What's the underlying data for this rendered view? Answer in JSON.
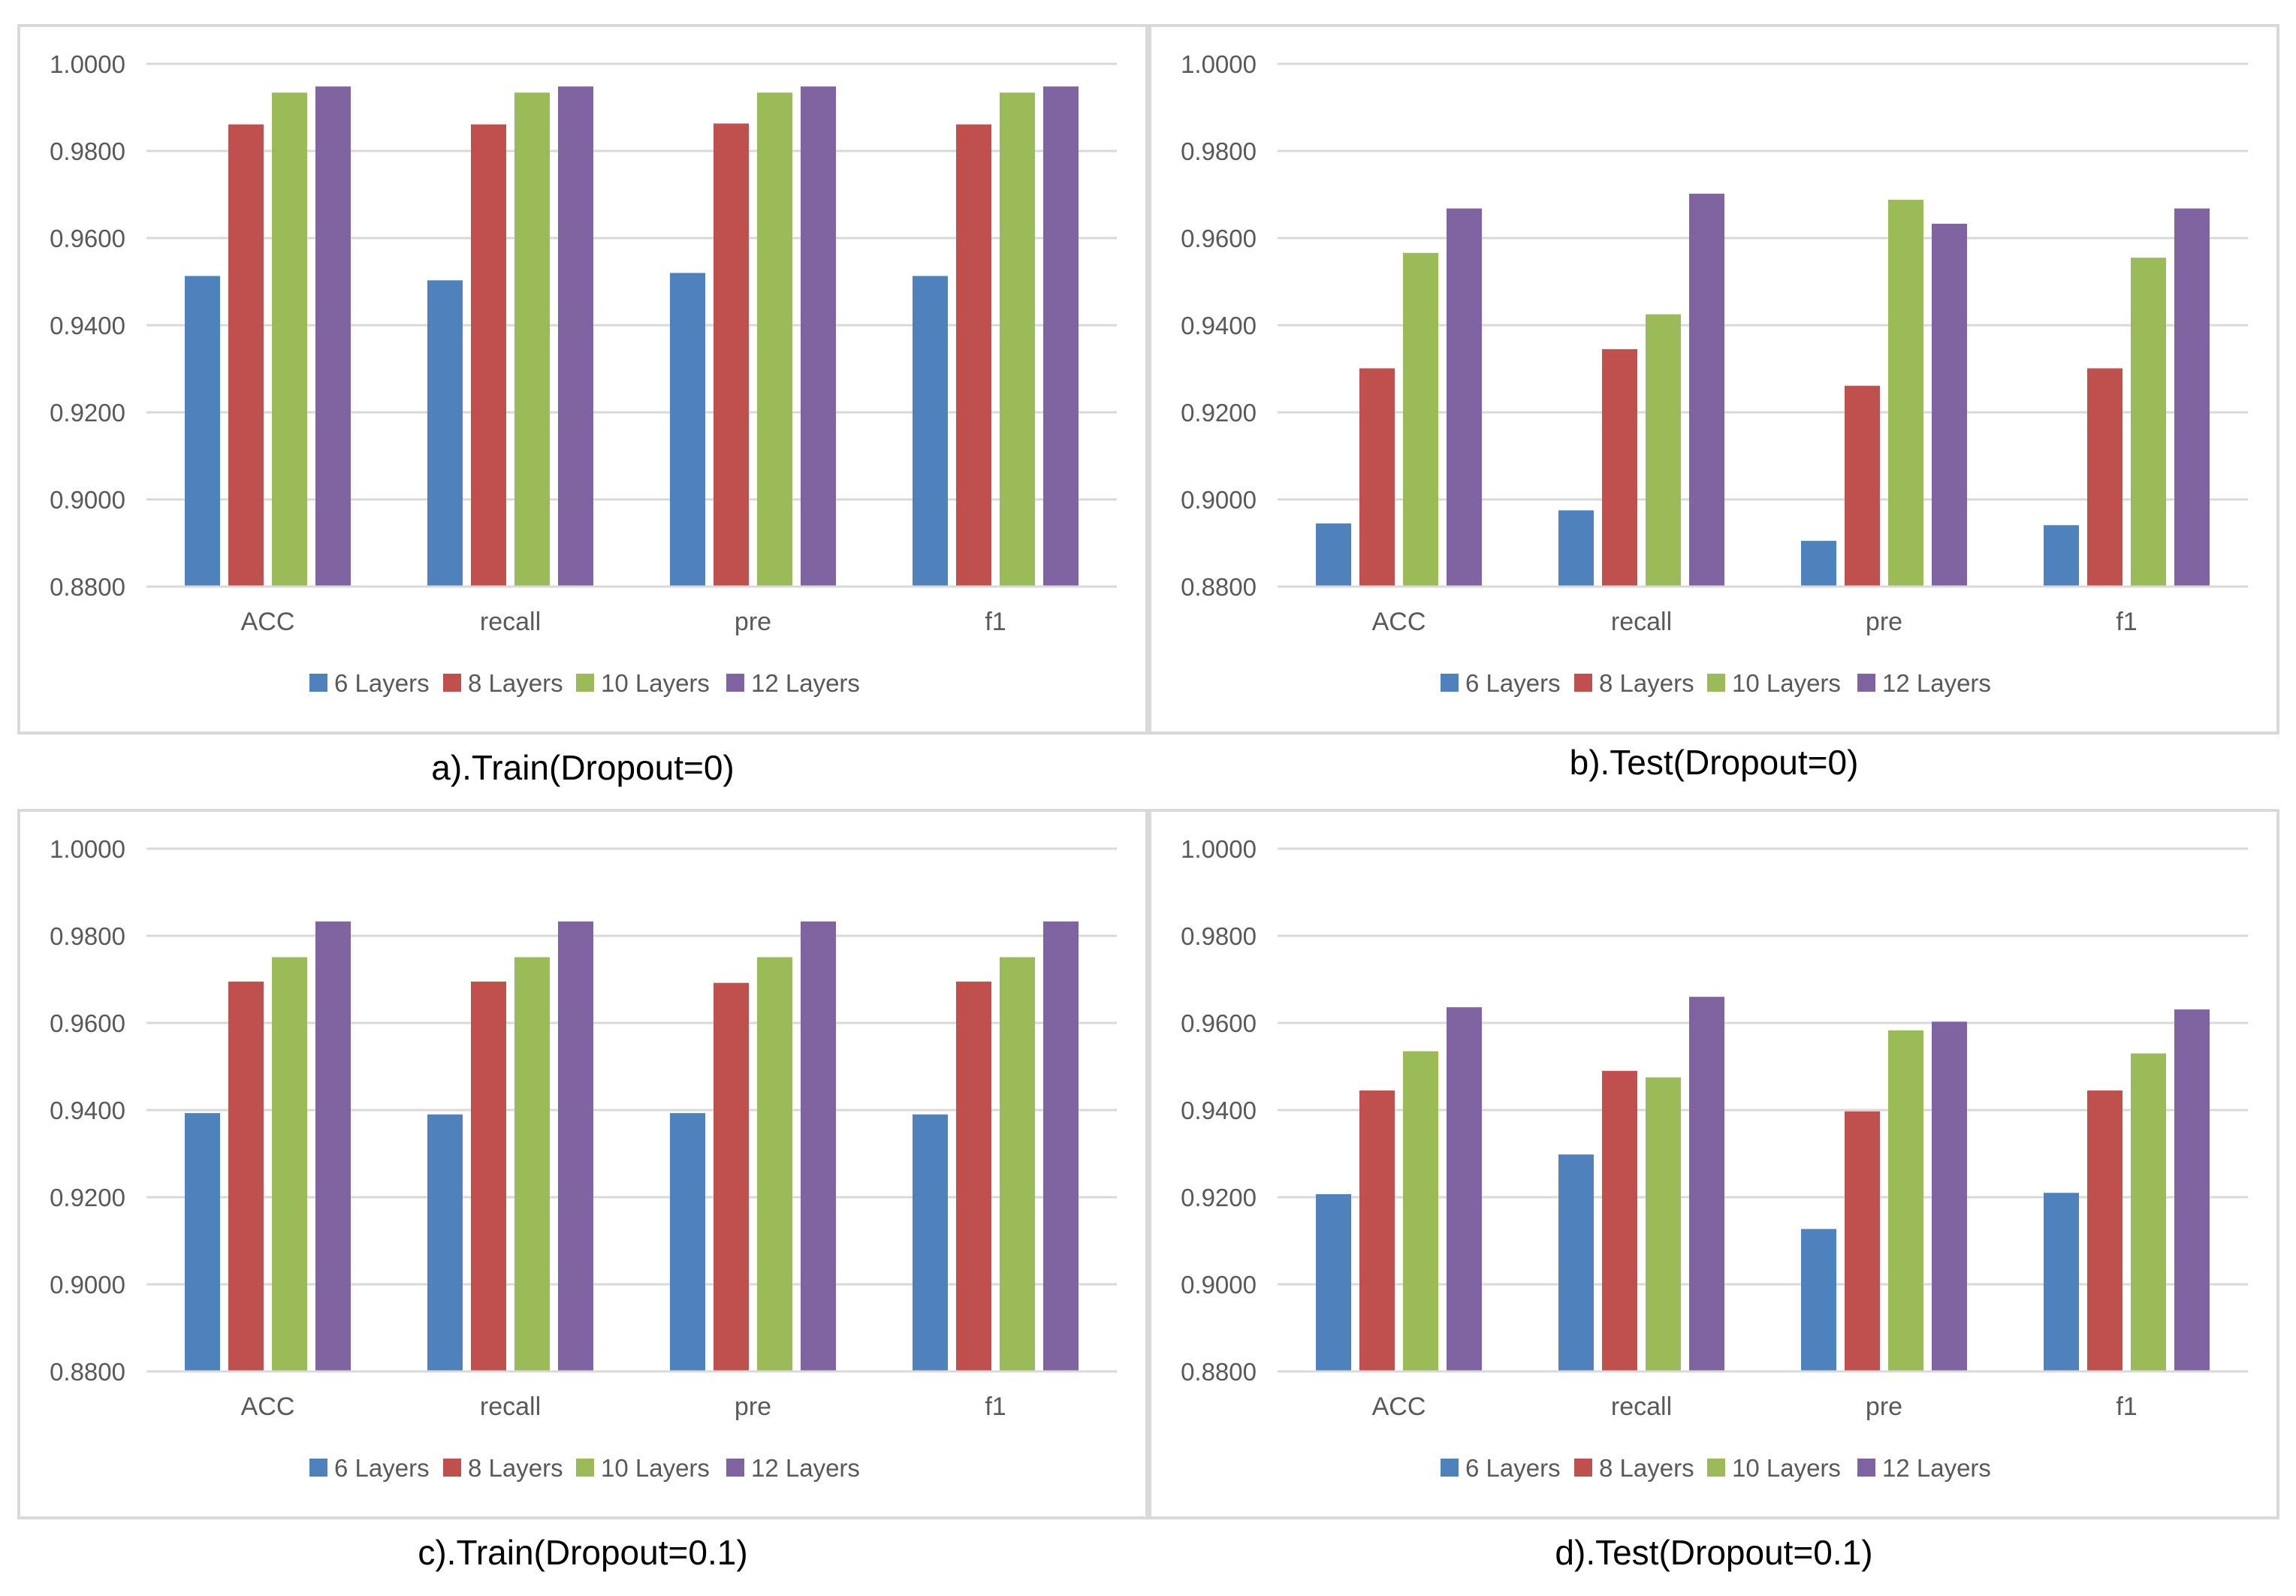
{
  "colors": {
    "6_layers": "#4f81bd",
    "8_layers": "#c0504d",
    "10_layers": "#9bbb59",
    "12_layers": "#8064a2",
    "grid": "#d9d9d9",
    "axis_text": "#595959"
  },
  "chart_data": [
    {
      "type": "bar",
      "caption": "a).Train(Dropout=0)",
      "categories": [
        "ACC",
        "recall",
        "pre",
        "f1"
      ],
      "ylim": [
        0.88,
        1.0
      ],
      "yticks": [
        "0.8800",
        "0.9000",
        "0.9200",
        "0.9400",
        "0.9600",
        "0.9800",
        "1.0000"
      ],
      "series": [
        {
          "name": "6 Layers",
          "values": [
            0.9513,
            0.9503,
            0.952,
            0.9513
          ]
        },
        {
          "name": "8 Layers",
          "values": [
            0.9861,
            0.9861,
            0.9863,
            0.9861
          ]
        },
        {
          "name": "10 Layers",
          "values": [
            0.9934,
            0.9934,
            0.9934,
            0.9934
          ]
        },
        {
          "name": "12 Layers",
          "values": [
            0.9948,
            0.9948,
            0.9948,
            0.9948
          ]
        }
      ]
    },
    {
      "type": "bar",
      "caption": "b).Test(Dropout=0)",
      "categories": [
        "ACC",
        "recall",
        "pre",
        "f1"
      ],
      "ylim": [
        0.88,
        1.0
      ],
      "yticks": [
        "0.8800",
        "0.9000",
        "0.9200",
        "0.9400",
        "0.9600",
        "0.9800",
        "1.0000"
      ],
      "series": [
        {
          "name": "6 Layers",
          "values": [
            0.8945,
            0.8975,
            0.8905,
            0.8941
          ]
        },
        {
          "name": "8 Layers",
          "values": [
            0.9301,
            0.9345,
            0.9261,
            0.9301
          ]
        },
        {
          "name": "10 Layers",
          "values": [
            0.9566,
            0.9425,
            0.9688,
            0.9555
          ]
        },
        {
          "name": "12 Layers",
          "values": [
            0.9668,
            0.9702,
            0.9633,
            0.9668
          ]
        }
      ]
    },
    {
      "type": "bar",
      "caption": "c).Train(Dropout=0.1)",
      "categories": [
        "ACC",
        "recall",
        "pre",
        "f1"
      ],
      "ylim": [
        0.88,
        1.0
      ],
      "yticks": [
        "0.8800",
        "0.9000",
        "0.9200",
        "0.9400",
        "0.9600",
        "0.9800",
        "1.0000"
      ],
      "series": [
        {
          "name": "6 Layers",
          "values": [
            0.9393,
            0.939,
            0.9393,
            0.939
          ]
        },
        {
          "name": "8 Layers",
          "values": [
            0.9695,
            0.9695,
            0.9692,
            0.9695
          ]
        },
        {
          "name": "10 Layers",
          "values": [
            0.9751,
            0.9751,
            0.9751,
            0.9751
          ]
        },
        {
          "name": "12 Layers",
          "values": [
            0.9833,
            0.9833,
            0.9833,
            0.9833
          ]
        }
      ]
    },
    {
      "type": "bar",
      "caption": "d).Test(Dropout=0.1)",
      "categories": [
        "ACC",
        "recall",
        "pre",
        "f1"
      ],
      "ylim": [
        0.88,
        1.0
      ],
      "yticks": [
        "0.8800",
        "0.9000",
        "0.9200",
        "0.9400",
        "0.9600",
        "0.9800",
        "1.0000"
      ],
      "series": [
        {
          "name": "6 Layers",
          "values": [
            0.9207,
            0.9298,
            0.9127,
            0.921
          ]
        },
        {
          "name": "8 Layers",
          "values": [
            0.9445,
            0.949,
            0.9397,
            0.9445
          ]
        },
        {
          "name": "10 Layers",
          "values": [
            0.9535,
            0.9475,
            0.9583,
            0.953
          ]
        },
        {
          "name": "12 Layers",
          "values": [
            0.9636,
            0.966,
            0.9603,
            0.9631
          ]
        }
      ]
    }
  ]
}
